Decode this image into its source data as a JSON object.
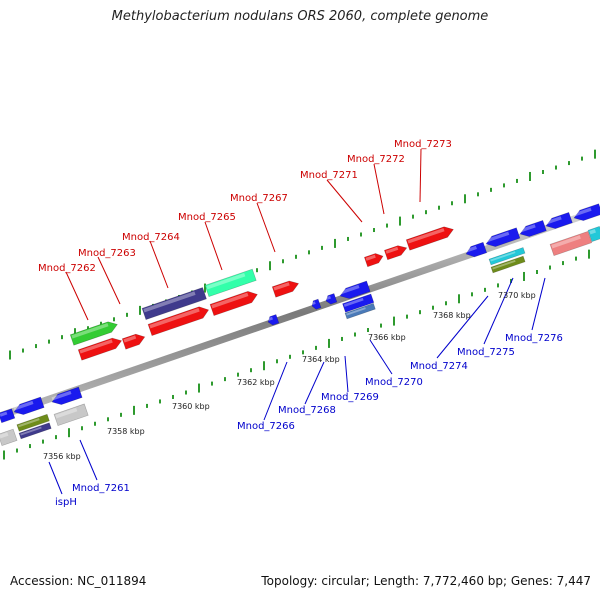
{
  "title": "Methylobacterium nodulans ORS 2060, complete genome",
  "accession": "Accession: NC_011894",
  "topology": "Topology: circular; Length: 7,772,460 bp; Genes: 7,447",
  "colors": {
    "backbone": "#8c8c8c",
    "tick": "#2e9a2e",
    "top_label": "#cc0000",
    "bottom_label": "#0000cc"
  },
  "top_labels": [
    "Mnod_7262",
    "Mnod_7263",
    "Mnod_7264",
    "Mnod_7265",
    "Mnod_7267",
    "Mnod_7271",
    "Mnod_7272",
    "Mnod_7273"
  ],
  "bottom_labels": [
    "Mnod_7261",
    "ispH",
    "Mnod_7266",
    "Mnod_7268",
    "Mnod_7269",
    "Mnod_7270",
    "Mnod_7274",
    "Mnod_7275",
    "Mnod_7276"
  ],
  "scale_labels": [
    "7356 kbp",
    "7358 kbp",
    "7360 kbp",
    "7362 kbp",
    "7364 kbp",
    "7366 kbp",
    "7368 kbp",
    "7370 kbp"
  ],
  "feature_colors": {
    "red": "#ee1111",
    "green": "#33cc33",
    "navy": "#3f3a8c",
    "aqua": "#33ffaa",
    "blue": "#1a1aee",
    "gray": "#c8c8c8",
    "olive": "#6e8c1a",
    "cyan": "#22c8d8",
    "pink": "#ee8080",
    "steel": "#4a7ab8"
  }
}
